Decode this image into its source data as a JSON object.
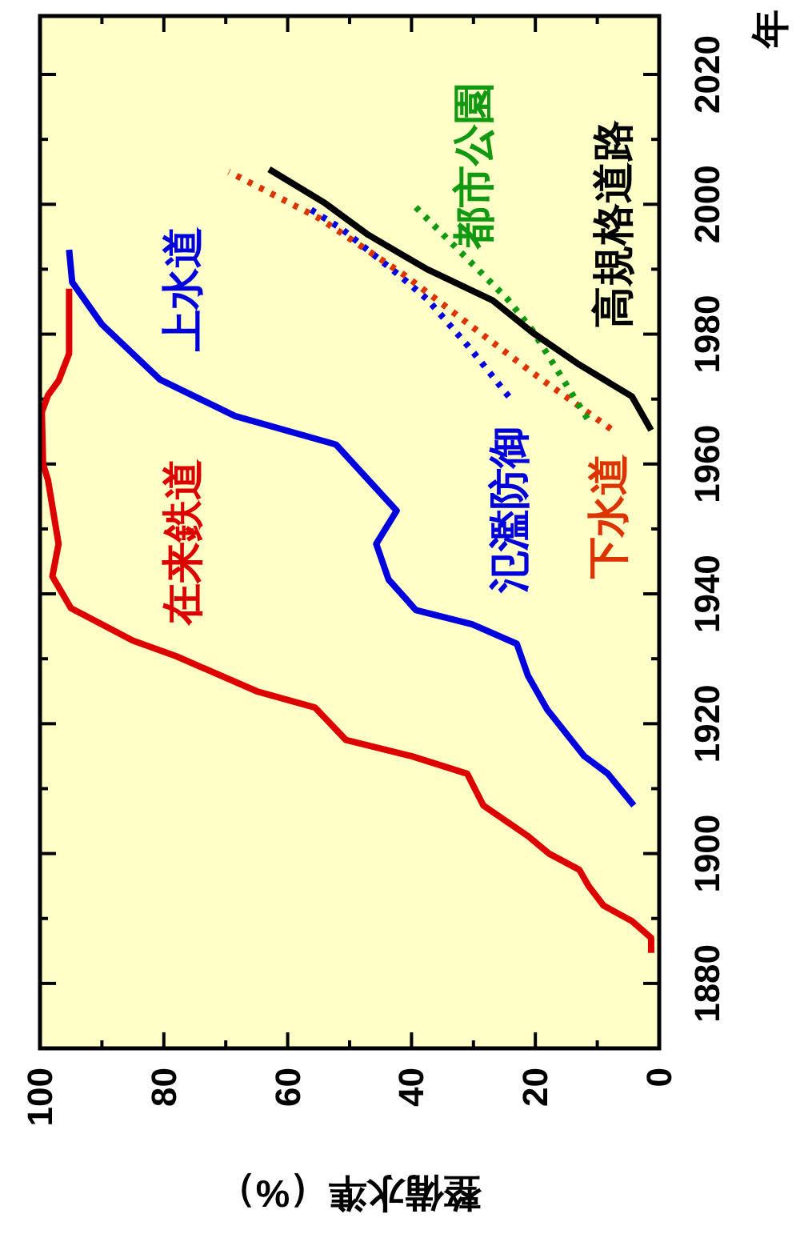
{
  "chart_data": {
    "type": "line",
    "xlabel": "整備水準（%）",
    "ylabel": "年",
    "xlim": [
      100,
      0
    ],
    "ylim": [
      1870,
      2029
    ],
    "xticks": [
      0,
      {
        "value": 10,
        "label": null
      },
      20,
      {
        "value": 30,
        "label": null
      },
      40,
      {
        "value": 50,
        "label": null
      },
      60,
      {
        "value": 70,
        "label": null
      },
      80,
      {
        "value": 90,
        "label": null
      },
      100
    ],
    "yticks": [
      1880,
      {
        "value": 1890,
        "label": null
      },
      1900,
      {
        "value": 1910,
        "label": null
      },
      1920,
      {
        "value": 1930,
        "label": null
      },
      1940,
      {
        "value": 1950,
        "label": null
      },
      1960,
      {
        "value": 1970,
        "label": null
      },
      1980,
      {
        "value": 1990,
        "label": null
      },
      2000,
      {
        "value": 2010,
        "label": null
      },
      2020
    ],
    "grid": false,
    "legend": false,
    "marker": "none",
    "series": [
      {
        "name": "在来鉄道",
        "color": "#dd0000",
        "line_style": "solid",
        "values": [
          1884.7,
          1887,
          1889.6,
          1892,
          1895,
          1897.5,
          1900,
          1902.7,
          1907.4,
          1912.3,
          1915,
          1917.5,
          1922.5,
          1925,
          1930.4,
          1932.8,
          1937.8,
          1942.7,
          1947.7,
          1957.5,
          1960,
          1968,
          1970.6,
          1972.8,
          1977,
          1987
        ],
        "x": [
          1.3,
          1.3,
          4.4,
          9,
          11.4,
          12.9,
          17.8,
          21.2,
          28.4,
          31,
          40,
          50.6,
          55.6,
          65,
          78,
          85,
          95,
          98,
          97,
          98.7,
          99.5,
          99.7,
          98.7,
          97,
          95.3,
          95.3
        ]
      },
      {
        "name": "上水道",
        "color": "#0000dd",
        "line_style": "solid",
        "values": [
          1907.4,
          1912.3,
          1915,
          1922.2,
          1927.4,
          1932.3,
          1935.3,
          1937.5,
          1942.2,
          1947.7,
          1952.8,
          1963,
          1967.4,
          1973,
          1981.5,
          1988,
          1993
        ],
        "x": [
          4.1,
          8.3,
          12.1,
          18.1,
          21.2,
          23,
          30.2,
          39.3,
          43.7,
          45.7,
          42.4,
          52.2,
          68.5,
          80.6,
          90,
          94.8,
          95.3
        ]
      },
      {
        "name": "氾濫防御",
        "color": "#0000dd",
        "line_style": "dotted",
        "values": [
          1970.4,
          1978,
          1985.4,
          1989,
          1996.3,
          1999.5
        ],
        "x": [
          24.3,
          30.7,
          37.5,
          41.9,
          51.4,
          56.8
        ]
      },
      {
        "name": "下水道",
        "color": "#dd3300",
        "line_style": "dotted",
        "values": [
          1965.4,
          1974,
          1989,
          1997.8,
          2005
        ],
        "x": [
          7.8,
          20.4,
          41,
          54.8,
          69.5
        ]
      },
      {
        "name": "都市公園",
        "color": "#119911",
        "line_style": "dotted",
        "values": [
          1967,
          1980.5,
          1985.4,
          2000.2
        ],
        "x": [
          11.6,
          20.4,
          24.5,
          40
        ]
      },
      {
        "name": "高規格道路",
        "color": "#000000",
        "line_style": "solid",
        "values": [
          1965.2,
          1970.4,
          1975.3,
          1980.2,
          1985.2,
          1990,
          1995.3,
          2000.2,
          2005.4
        ],
        "x": [
          1.3,
          4.4,
          12.9,
          20.4,
          26.9,
          37.5,
          47,
          54,
          63
        ]
      }
    ]
  }
}
